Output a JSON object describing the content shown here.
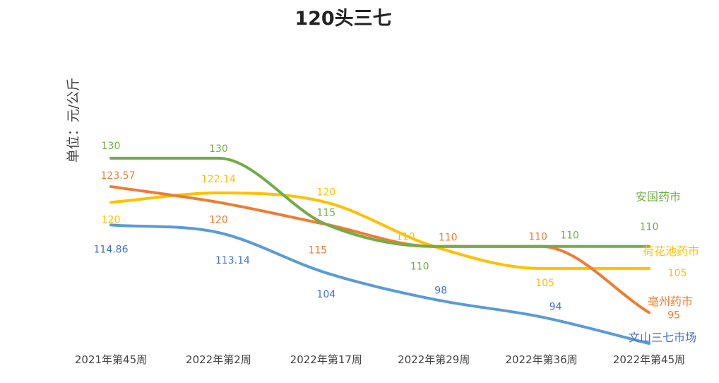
{
  "chart_data": {
    "type": "line",
    "title": "120头三七",
    "xlabel": "",
    "ylabel": "单位：元/公斤",
    "categories": [
      "2021年第45周",
      "2022年第2周",
      "2022年第17周",
      "2022年第29周",
      "2022年第36周",
      "2022年第45周"
    ],
    "ylim": [
      88,
      138
    ],
    "grid": false,
    "legend": "none",
    "series": [
      {
        "name": "安国药市",
        "color": "#70AD47",
        "values": [
          130,
          130,
          115,
          110,
          110,
          110
        ],
        "labels": [
          "130",
          "130",
          "115",
          "110",
          "110",
          "110"
        ]
      },
      {
        "name": "亳州药市",
        "color": "#ED7D31",
        "values": [
          123.57,
          120,
          115,
          110,
          110,
          95
        ],
        "labels": [
          "123.57",
          "120",
          "115",
          "110",
          "110",
          "95"
        ]
      },
      {
        "name": "荷花池药市",
        "color": "#FFC000",
        "values": [
          120,
          122.14,
          120,
          110,
          105,
          105
        ],
        "labels": [
          "120",
          "122.14",
          "120",
          "110",
          "105",
          "105"
        ]
      },
      {
        "name": "文山三七市场",
        "color": "#5B9BD5",
        "values": [
          114.86,
          113.14,
          104,
          98,
          94,
          88
        ],
        "labels": [
          "114.86",
          "113.14",
          "104",
          "98",
          "94",
          ""
        ]
      }
    ],
    "data_label_colors": {
      "安国药市": "#70AD47",
      "亳州药市": "#ED7D31",
      "荷花池药市": "#FFC000",
      "文山三七市场": "#4472C4"
    }
  }
}
